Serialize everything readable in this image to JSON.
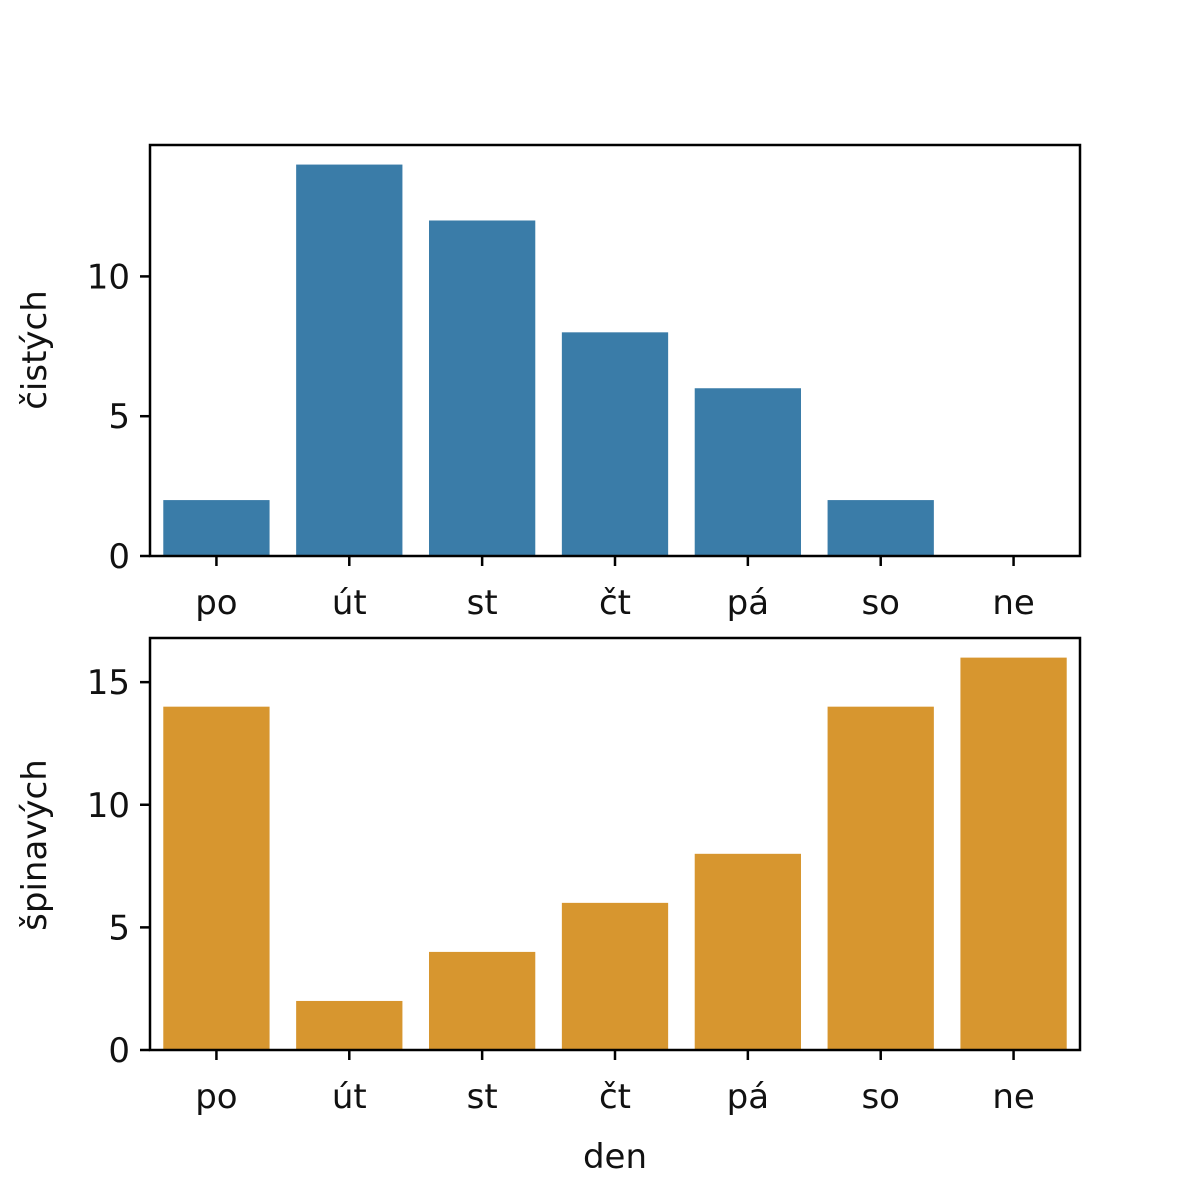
{
  "chart_data": [
    {
      "type": "bar",
      "categories": [
        "po",
        "út",
        "st",
        "čt",
        "pá",
        "so",
        "ne"
      ],
      "values": [
        2,
        14,
        12,
        8,
        6,
        2,
        0
      ],
      "ylabel": "čistých",
      "xlabel": "",
      "ylim": [
        0,
        14.7
      ],
      "yticks": [
        0,
        5,
        10
      ],
      "color": "#3a7ca8",
      "grid": false
    },
    {
      "type": "bar",
      "categories": [
        "po",
        "út",
        "st",
        "čt",
        "pá",
        "so",
        "ne"
      ],
      "values": [
        14,
        2,
        4,
        6,
        8,
        14,
        16
      ],
      "ylabel": "špinavých",
      "xlabel": "den",
      "ylim": [
        0,
        16.8
      ],
      "yticks": [
        0,
        5,
        10,
        15
      ],
      "color": "#d7962f",
      "grid": false
    }
  ]
}
